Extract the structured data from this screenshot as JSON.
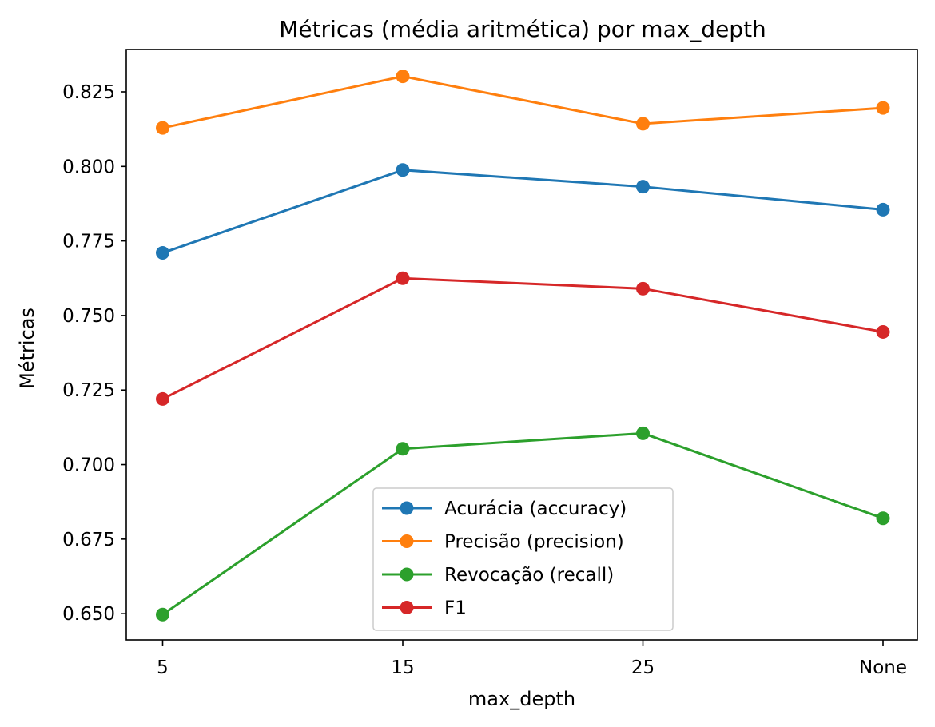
{
  "chart_data": {
    "type": "line",
    "title": "Métricas (média aritmética) por max_depth",
    "xlabel": "max_depth",
    "ylabel": "Métricas",
    "categories": [
      "5",
      "15",
      "25",
      "None"
    ],
    "ylim": [
      0.6412,
      0.8392
    ],
    "yticks": [
      "0.650",
      "0.675",
      "0.700",
      "0.725",
      "0.750",
      "0.775",
      "0.800",
      "0.825"
    ],
    "grid": false,
    "legend_position": "lower center",
    "series": [
      {
        "name": "Acurácia (accuracy)",
        "color": "#1f77b4",
        "values": [
          0.771,
          0.7988,
          0.7932,
          0.7855
        ]
      },
      {
        "name": "Precisão (precision)",
        "color": "#ff7f0e",
        "values": [
          0.8129,
          0.8302,
          0.8143,
          0.8196
        ]
      },
      {
        "name": "Revocação (recall)",
        "color": "#2ca02c",
        "values": [
          0.6497,
          0.7053,
          0.7105,
          0.682
        ]
      },
      {
        "name": "F1",
        "color": "#d62728",
        "values": [
          0.722,
          0.7625,
          0.759,
          0.7445
        ]
      }
    ]
  }
}
